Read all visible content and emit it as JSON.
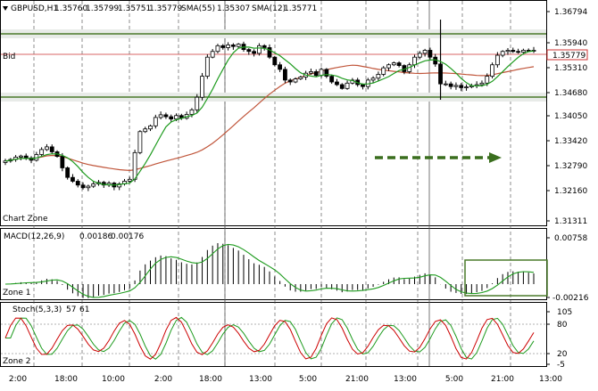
{
  "header": {
    "symbol": "GBPUSD,H1",
    "open": "1.35760",
    "high": "1.35799",
    "low": "1.35751",
    "close": "1.35779",
    "sma_slow_label": "SMA(55)",
    "sma_slow_value": "1.35307",
    "sma_fast_label": "SMA(12)",
    "sma_fast_value": "1.35771"
  },
  "price_axis": {
    "labels": [
      "1.36794",
      "1.35940",
      "1.35310",
      "1.34680",
      "1.34050",
      "1.33420",
      "1.32790",
      "1.32160",
      "1.31311"
    ],
    "current_price": "1.35779",
    "bid_label": "Bid"
  },
  "zones": {
    "chart": "Chart Zone",
    "zone1": "Zone 1",
    "zone2": "Zone 2"
  },
  "macd": {
    "label": "MACD(12,26,9)",
    "main": "0.00186",
    "signal": "0.00176",
    "axis_top": "0.00758",
    "axis_bottom": "-0.00216"
  },
  "stoch": {
    "label": "Stoch(5,3,3)",
    "main": "57",
    "signal": "61",
    "axis_labels": [
      "105",
      "80",
      "20",
      "-5"
    ]
  },
  "time_axis": {
    "labels": [
      "2:00",
      "18:00",
      "10:00",
      "2:00",
      "18:00",
      "13:00",
      "5:00",
      "21:00",
      "13:00",
      "5:00",
      "21:00",
      "13:00"
    ]
  },
  "colors": {
    "level_line": "#4a7a2a",
    "bid_line": "#cc3333",
    "sma_fast": "#1e9b1e",
    "sma_slow": "#c0553a",
    "stoch_main": "#cc0000",
    "stoch_signal": "#1e9b1e",
    "arrow": "#3a6e1e"
  },
  "chart_data": {
    "type": "candlestick",
    "price_range": [
      1.31311,
      1.36794
    ],
    "macd_range": [
      -0.00216,
      0.00758
    ],
    "stoch_range": [
      -5,
      105
    ],
    "stoch_levels": [
      20,
      80
    ],
    "horizontal_levels": [
      1.3603,
      1.3465
    ],
    "closes": [
      1.3288,
      1.3292,
      1.3298,
      1.3301,
      1.3296,
      1.329,
      1.3305,
      1.3318,
      1.3325,
      1.3312,
      1.33,
      1.327,
      1.3245,
      1.3235,
      1.3225,
      1.3218,
      1.3222,
      1.3228,
      1.3232,
      1.3225,
      1.323,
      1.322,
      1.3228,
      1.3235,
      1.324,
      1.331,
      1.3365,
      1.3372,
      1.338,
      1.3402,
      1.3409,
      1.3404,
      1.3398,
      1.3407,
      1.34,
      1.341,
      1.3422,
      1.3455,
      1.351,
      1.356,
      1.3575,
      1.359,
      1.3585,
      1.3592,
      1.3588,
      1.3594,
      1.358,
      1.3575,
      1.357,
      1.359,
      1.3585,
      1.356,
      1.354,
      1.3528,
      1.35,
      1.3495,
      1.3503,
      1.3508,
      1.3518,
      1.3522,
      1.3512,
      1.3528,
      1.351,
      1.3495,
      1.3488,
      1.3478,
      1.3492,
      1.35,
      1.3488,
      1.3483,
      1.35,
      1.3505,
      1.3515,
      1.3532,
      1.354,
      1.3545,
      1.3538,
      1.3522,
      1.354,
      1.356,
      1.357,
      1.3578,
      1.356,
      1.3542,
      1.349,
      1.349,
      1.3483,
      1.3486,
      1.348,
      1.3482,
      1.3485,
      1.3488,
      1.3492,
      1.351,
      1.354,
      1.3565,
      1.3575,
      1.3578,
      1.3575,
      1.3573,
      1.3578,
      1.3577,
      1.3578
    ]
  }
}
